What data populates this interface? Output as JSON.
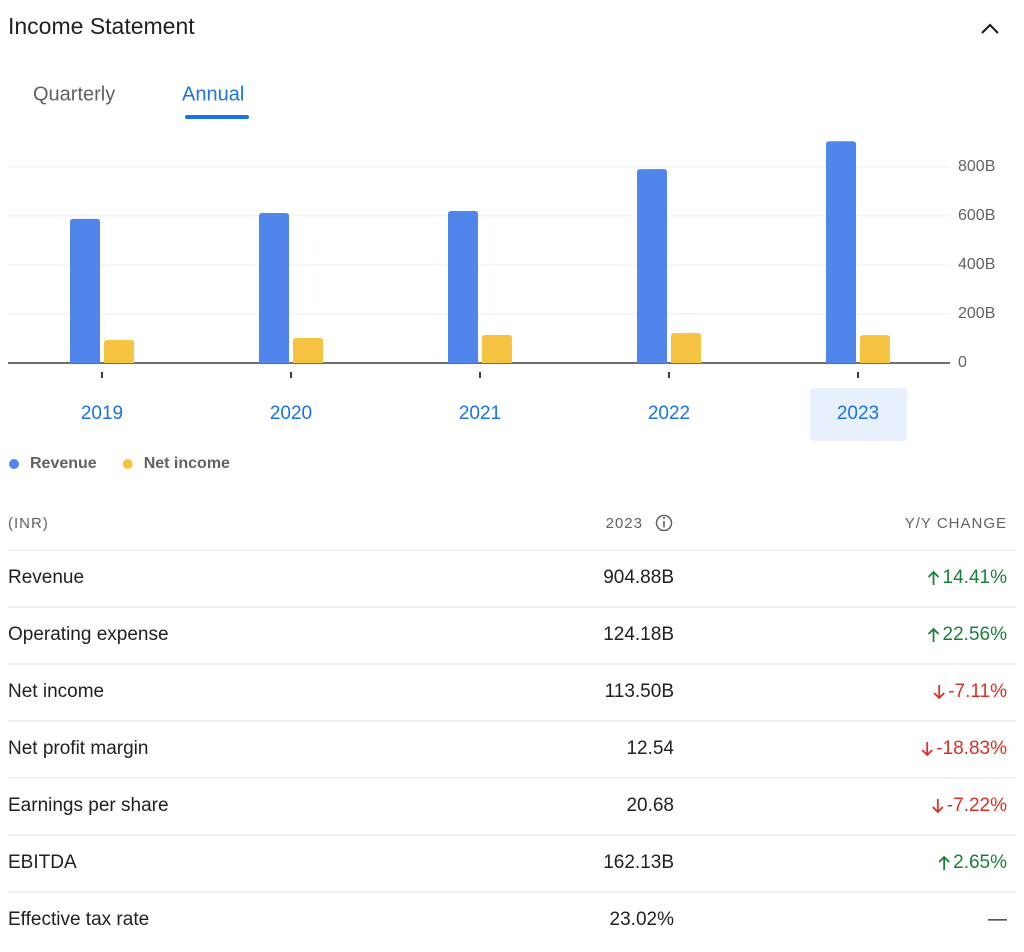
{
  "header": {
    "title": "Income Statement"
  },
  "tabs": [
    "Quarterly",
    "Annual"
  ],
  "chart_data": {
    "type": "bar",
    "categories": [
      "2019",
      "2020",
      "2021",
      "2022",
      "2023"
    ],
    "series": [
      {
        "name": "Revenue",
        "color": "#5086ec",
        "values": [
          588,
          612,
          620,
          791,
          904.88
        ]
      },
      {
        "name": "Net income",
        "color": "#f5c242",
        "values": [
          94,
          102,
          114,
          122,
          113.5
        ]
      }
    ],
    "ylim": [
      0,
      920
    ],
    "yticks": [
      0,
      {
        "value": 200,
        "label": "200B"
      },
      {
        "value": 400,
        "label": "400B"
      },
      {
        "value": 600,
        "label": "600B"
      },
      {
        "value": 800,
        "label": "800B"
      }
    ],
    "grid": true
  },
  "table": {
    "header": [
      "(INR)",
      "2023",
      "Y/Y CHANGE"
    ],
    "rows": [
      [
        "Revenue",
        "904.88B",
        "14.41%"
      ],
      [
        "Operating expense",
        "124.18B",
        "22.56%"
      ],
      [
        "Net income",
        "113.50B",
        "-7.11%"
      ],
      [
        "Net profit margin",
        "12.54",
        "-18.83%"
      ],
      [
        "Earnings per share",
        "20.68",
        "-7.22%"
      ],
      [
        "EBITDA",
        "162.13B",
        "2.65%"
      ],
      [
        "Effective tax rate",
        "23.02%",
        "—"
      ]
    ]
  }
}
